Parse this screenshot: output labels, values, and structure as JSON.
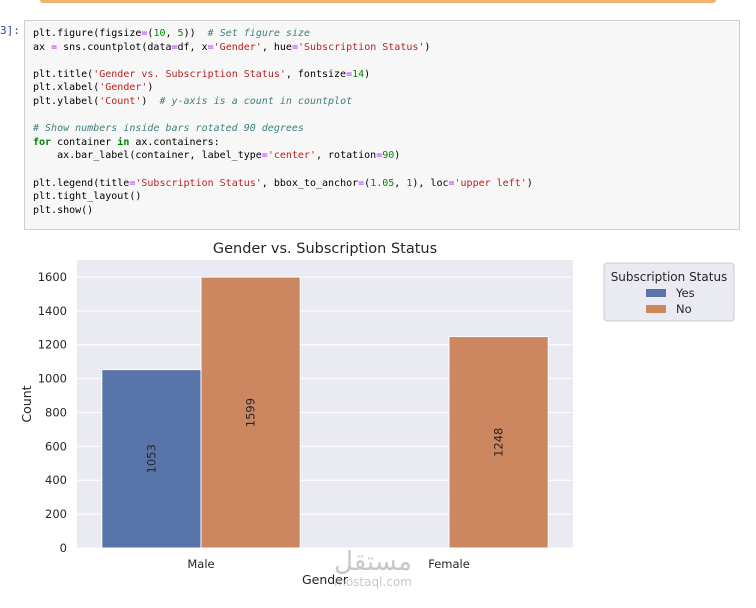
{
  "cell": {
    "prompt": "3]:",
    "code_lines": [
      [
        [
          "plt.figure(figsize",
          "t"
        ],
        [
          "=",
          "op"
        ],
        [
          "(",
          "t"
        ],
        [
          "10",
          "num"
        ],
        [
          ", ",
          "t"
        ],
        [
          "5",
          "num"
        ],
        [
          "))  ",
          "t"
        ],
        [
          "# Set figure size",
          "com"
        ]
      ],
      [
        [
          "ax ",
          "t"
        ],
        [
          "=",
          "op"
        ],
        [
          " sns.countplot(data",
          "t"
        ],
        [
          "=",
          "op"
        ],
        [
          "df, x",
          "t"
        ],
        [
          "=",
          "op"
        ],
        [
          "'Gender'",
          "str"
        ],
        [
          ", hue",
          "t"
        ],
        [
          "=",
          "op"
        ],
        [
          "'Subscription Status'",
          "str"
        ],
        [
          ")",
          "t"
        ]
      ],
      [],
      [
        [
          "plt.title(",
          "t"
        ],
        [
          "'Gender vs. Subscription Status'",
          "str"
        ],
        [
          ", fontsize",
          "t"
        ],
        [
          "=",
          "op"
        ],
        [
          "14",
          "num"
        ],
        [
          ")",
          "t"
        ]
      ],
      [
        [
          "plt.xlabel(",
          "t"
        ],
        [
          "'Gender'",
          "str"
        ],
        [
          ")",
          "t"
        ]
      ],
      [
        [
          "plt.ylabel(",
          "t"
        ],
        [
          "'Count'",
          "str"
        ],
        [
          ")  ",
          "t"
        ],
        [
          "# y-axis is a count in countplot",
          "com"
        ]
      ],
      [],
      [
        [
          "# Show numbers inside bars rotated 90 degrees",
          "com"
        ]
      ],
      [
        [
          "for",
          "kw"
        ],
        [
          " container ",
          "t"
        ],
        [
          "in",
          "kw"
        ],
        [
          " ax.containers:",
          "t"
        ]
      ],
      [
        [
          "    ax.bar_label(container, label_type",
          "t"
        ],
        [
          "=",
          "op"
        ],
        [
          "'center'",
          "str"
        ],
        [
          ", rotation",
          "t"
        ],
        [
          "=",
          "op"
        ],
        [
          "90",
          "num"
        ],
        [
          ")",
          "t"
        ]
      ],
      [],
      [
        [
          "plt.legend(title",
          "t"
        ],
        [
          "=",
          "op"
        ],
        [
          "'Subscription Status'",
          "str"
        ],
        [
          ", bbox_to_anchor",
          "t"
        ],
        [
          "=",
          "op"
        ],
        [
          "(",
          "t"
        ],
        [
          "1.05",
          "num"
        ],
        [
          ", ",
          "t"
        ],
        [
          "1",
          "num"
        ],
        [
          "), loc",
          "t"
        ],
        [
          "=",
          "op"
        ],
        [
          "'upper left'",
          "str"
        ],
        [
          ")",
          "t"
        ]
      ],
      [
        [
          "plt.tight_layout()",
          "t"
        ]
      ],
      [
        [
          "plt.show()",
          "t"
        ]
      ]
    ]
  },
  "chart_data": {
    "type": "bar",
    "title": "Gender vs. Subscription Status",
    "xlabel": "Gender",
    "ylabel": "Count",
    "categories": [
      "Male",
      "Female"
    ],
    "series": [
      {
        "name": "Yes",
        "values": [
          1053,
          0
        ],
        "labels": [
          "1053",
          ""
        ],
        "color": "#5874a8"
      },
      {
        "name": "No",
        "values": [
          1599,
          1248
        ],
        "labels": [
          "1599",
          "1248"
        ],
        "color": "#cc8660"
      }
    ],
    "ylim": [
      0,
      1700
    ],
    "yticks": [
      0,
      200,
      400,
      600,
      800,
      1000,
      1200,
      1400,
      1600
    ],
    "grid": true,
    "plot_background": "#eaeaf2",
    "legend": {
      "title": "Subscription Status",
      "placement": "outside upper right"
    }
  },
  "watermark": {
    "main": "مستقل",
    "sub": "mostaql.com"
  }
}
